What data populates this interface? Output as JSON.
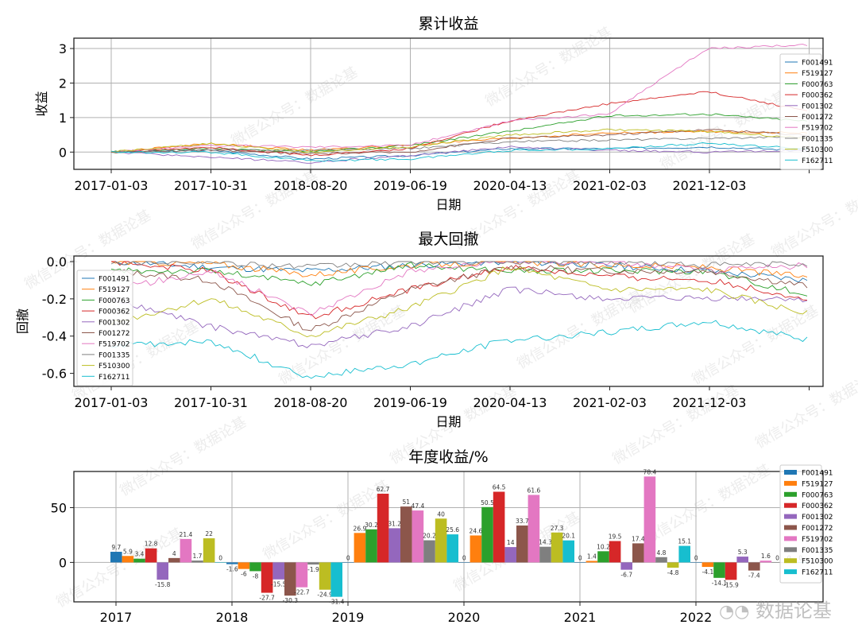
{
  "chart_data": [
    {
      "type": "line",
      "title": "累计收益",
      "xlabel": "日期",
      "ylabel": "收益",
      "x_ticks": [
        "2017-01-03",
        "2017-10-31",
        "2018-08-20",
        "2019-06-19",
        "2020-04-13",
        "2021-02-03",
        "2021-12-03"
      ],
      "y_ticks": [
        0,
        1,
        2,
        3
      ],
      "ylim": [
        -0.5,
        3.3
      ],
      "grid": true,
      "legend_position": "upper right",
      "series": [
        {
          "name": "F001491",
          "color": "#1f77b4",
          "values": [
            0,
            0.05,
            -0.2,
            -0.1,
            0.1,
            0.1,
            0.15,
            0.05
          ]
        },
        {
          "name": "F519127",
          "color": "#ff7f0e",
          "values": [
            0,
            0.25,
            0.05,
            0.2,
            0.4,
            0.55,
            0.6,
            0.55
          ]
        },
        {
          "name": "F000763",
          "color": "#2ca02c",
          "values": [
            0,
            0.1,
            0.0,
            0.2,
            0.6,
            1.05,
            1.1,
            0.9
          ]
        },
        {
          "name": "F000362",
          "color": "#d62728",
          "values": [
            0,
            0.15,
            -0.1,
            0.1,
            0.9,
            1.4,
            1.75,
            1.2
          ]
        },
        {
          "name": "F001302",
          "color": "#9467bd",
          "values": [
            0,
            -0.15,
            -0.3,
            -0.1,
            0.15,
            0.05,
            0.0,
            0.05
          ]
        },
        {
          "name": "F001272",
          "color": "#8c564b",
          "values": [
            0,
            0.05,
            -0.05,
            0.0,
            0.4,
            0.5,
            0.65,
            0.5
          ]
        },
        {
          "name": "F519702",
          "color": "#e377c2",
          "values": [
            0,
            0.2,
            0.15,
            0.2,
            0.9,
            1.1,
            3.0,
            3.1
          ]
        },
        {
          "name": "F001335",
          "color": "#7f7f7f",
          "values": [
            0,
            0.05,
            0.05,
            0.1,
            0.3,
            0.35,
            0.4,
            0.45
          ]
        },
        {
          "name": "F510300",
          "color": "#bcbd22",
          "values": [
            0,
            0.25,
            0.0,
            0.15,
            0.5,
            0.65,
            0.6,
            0.4
          ]
        },
        {
          "name": "F162711",
          "color": "#17becf",
          "values": [
            0,
            0.0,
            -0.25,
            -0.2,
            0.05,
            0.1,
            0.25,
            0.1
          ]
        }
      ]
    },
    {
      "type": "line",
      "title": "最大回撤",
      "xlabel": "日期",
      "ylabel": "回撤",
      "x_ticks": [
        "2017-01-03",
        "2017-10-31",
        "2018-08-20",
        "2019-06-19",
        "2020-04-13",
        "2021-02-03",
        "2021-12-03"
      ],
      "y_ticks": [
        "0.0",
        "-0.2",
        "-0.4",
        "-0.6"
      ],
      "ylim": [
        -0.67,
        0.03
      ],
      "grid": false,
      "legend_position": "lower left",
      "series": [
        {
          "name": "F001491",
          "color": "#1f77b4",
          "values": [
            0,
            -0.03,
            -0.05,
            -0.02,
            0,
            -0.02,
            -0.05,
            -0.1
          ]
        },
        {
          "name": "F519127",
          "color": "#ff7f0e",
          "values": [
            0,
            -0.01,
            -0.07,
            -0.02,
            0,
            -0.02,
            -0.03,
            -0.08
          ]
        },
        {
          "name": "F000763",
          "color": "#2ca02c",
          "values": [
            -0.05,
            -0.05,
            -0.12,
            -0.02,
            -0.05,
            -0.05,
            -0.05,
            -0.18
          ]
        },
        {
          "name": "F000362",
          "color": "#d62728",
          "values": [
            0,
            -0.05,
            -0.3,
            -0.15,
            -0.03,
            -0.08,
            -0.1,
            -0.2
          ]
        },
        {
          "name": "F001302",
          "color": "#9467bd",
          "values": [
            -0.2,
            -0.35,
            -0.45,
            -0.35,
            -0.15,
            -0.2,
            -0.2,
            -0.2
          ]
        },
        {
          "name": "F001272",
          "color": "#8c564b",
          "values": [
            -0.05,
            -0.1,
            -0.37,
            -0.15,
            -0.03,
            -0.05,
            -0.05,
            -0.13
          ]
        },
        {
          "name": "F519702",
          "color": "#e377c2",
          "values": [
            -0.15,
            -0.05,
            -0.28,
            -0.05,
            0,
            0,
            -0.05,
            -0.02
          ]
        },
        {
          "name": "F001335",
          "color": "#7f7f7f",
          "values": [
            0,
            0,
            -0.03,
            0,
            0,
            0,
            -0.02,
            -0.01
          ]
        },
        {
          "name": "F510300",
          "color": "#bcbd22",
          "values": [
            -0.33,
            -0.2,
            -0.4,
            -0.25,
            -0.03,
            -0.15,
            -0.15,
            -0.28
          ]
        },
        {
          "name": "F162711",
          "color": "#17becf",
          "values": [
            -0.45,
            -0.43,
            -0.62,
            -0.55,
            -0.42,
            -0.38,
            -0.32,
            -0.42
          ]
        }
      ]
    },
    {
      "type": "bar",
      "title": "年度收益/%",
      "xlabel": "",
      "ylabel": "",
      "categories": [
        "2017",
        "2018",
        "2019",
        "2020",
        "2021",
        "2022"
      ],
      "y_ticks": [
        0,
        50
      ],
      "ylim": [
        -36,
        83
      ],
      "grid": true,
      "legend_position": "upper right",
      "series": [
        {
          "name": "F001491",
          "color": "#1f77b4",
          "values": [
            9.7,
            -1.6,
            0,
            0,
            0,
            0
          ]
        },
        {
          "name": "F519127",
          "color": "#ff7f0e",
          "values": [
            5.9,
            -6,
            26.9,
            24.6,
            1.4,
            -4.1
          ]
        },
        {
          "name": "F000763",
          "color": "#2ca02c",
          "values": [
            3.4,
            -8,
            30.2,
            50.5,
            10.2,
            -14.1
          ]
        },
        {
          "name": "F000362",
          "color": "#d62728",
          "values": [
            12.8,
            -27.7,
            62.7,
            64.5,
            19.5,
            -15.9
          ]
        },
        {
          "name": "F001302",
          "color": "#9467bd",
          "values": [
            -15.8,
            -15.5,
            31.2,
            14,
            -6.7,
            5.3
          ]
        },
        {
          "name": "F001272",
          "color": "#8c564b",
          "values": [
            4,
            -30.3,
            51,
            33.7,
            17.4,
            -7.4
          ]
        },
        {
          "name": "F519702",
          "color": "#e377c2",
          "values": [
            21.4,
            -22.7,
            47.4,
            61.6,
            78.4,
            1.6
          ]
        },
        {
          "name": "F001335",
          "color": "#7f7f7f",
          "values": [
            1.7,
            -1.9,
            20.2,
            14.3,
            4.8,
            0
          ]
        },
        {
          "name": "F510300",
          "color": "#bcbd22",
          "values": [
            22,
            -24.9,
            40,
            27.3,
            -4.8,
            0
          ]
        },
        {
          "name": "F162711",
          "color": "#17becf",
          "values": [
            0,
            -31.4,
            25.6,
            20.1,
            15.1,
            0
          ]
        }
      ]
    }
  ],
  "watermark": {
    "text": "微信公众号：数据论基",
    "logo_text": "数据论基"
  }
}
